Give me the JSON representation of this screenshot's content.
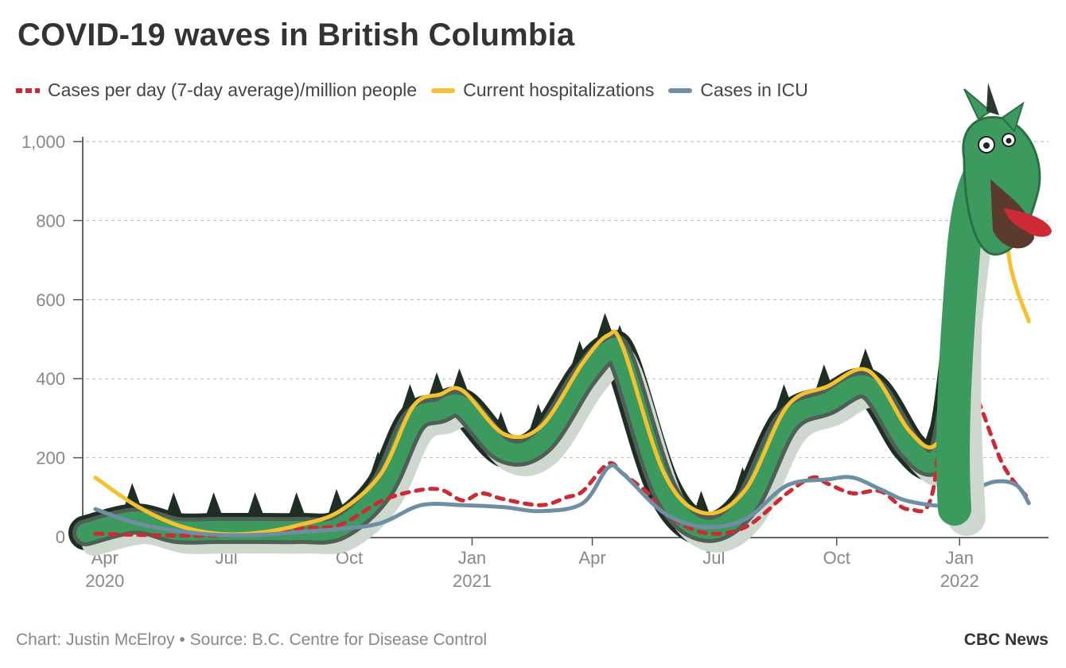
{
  "title": "COVID-19 waves in British Columbia",
  "legend": [
    {
      "label": "Cases per day (7-day average)/million people",
      "color": "#cc2b36",
      "style": "dashed"
    },
    {
      "label": "Current hospitalizations",
      "color": "#f5c12e",
      "style": "solid"
    },
    {
      "label": "Cases in ICU",
      "color": "#6e8fa3",
      "style": "solid"
    }
  ],
  "footer": {
    "credit": "Chart: Justin McElroy • Source: B.C. Centre for Disease Control",
    "brand": "CBC News"
  },
  "chart_data": {
    "type": "line",
    "title": "COVID-19 waves in British Columbia",
    "xlabel": "",
    "ylabel": "",
    "ylim": [
      0,
      1000
    ],
    "yticks": [
      {
        "value": 0,
        "label": "0"
      },
      {
        "value": 200,
        "label": "200"
      },
      {
        "value": 400,
        "label": "400"
      },
      {
        "value": 600,
        "label": "600"
      },
      {
        "value": 800,
        "label": "800"
      },
      {
        "value": 1000,
        "label": "1,000"
      }
    ],
    "xrange": [
      "2020-03-25",
      "2022-03-05"
    ],
    "xticks": [
      {
        "date": "2020-04-01",
        "label": "Apr",
        "year": "2020"
      },
      {
        "date": "2020-07-01",
        "label": "Jul",
        "year": ""
      },
      {
        "date": "2020-10-01",
        "label": "Oct",
        "year": ""
      },
      {
        "date": "2021-01-01",
        "label": "Jan",
        "year": "2021"
      },
      {
        "date": "2021-04-01",
        "label": "Apr",
        "year": ""
      },
      {
        "date": "2021-07-01",
        "label": "Jul",
        "year": ""
      },
      {
        "date": "2021-10-01",
        "label": "Oct",
        "year": ""
      },
      {
        "date": "2022-01-01",
        "label": "Jan",
        "year": "2022"
      }
    ],
    "grid": true,
    "legend_position": "top-left",
    "series": [
      {
        "name": "Cases per day (7-day average)/million people",
        "color": "#cc2b36",
        "style": "dashed",
        "points": [
          [
            "2020-04-01",
            8
          ],
          [
            "2020-05-01",
            5
          ],
          [
            "2020-06-01",
            3
          ],
          [
            "2020-07-01",
            3
          ],
          [
            "2020-08-01",
            8
          ],
          [
            "2020-09-01",
            22
          ],
          [
            "2020-10-01",
            30
          ],
          [
            "2020-11-01",
            90
          ],
          [
            "2020-11-25",
            115
          ],
          [
            "2020-12-15",
            120
          ],
          [
            "2021-01-01",
            92
          ],
          [
            "2021-01-15",
            110
          ],
          [
            "2021-02-01",
            95
          ],
          [
            "2021-03-01",
            80
          ],
          [
            "2021-03-20",
            100
          ],
          [
            "2021-04-01",
            115
          ],
          [
            "2021-04-20",
            185
          ],
          [
            "2021-05-01",
            160
          ],
          [
            "2021-05-20",
            110
          ],
          [
            "2021-06-01",
            60
          ],
          [
            "2021-07-01",
            10
          ],
          [
            "2021-08-01",
            25
          ],
          [
            "2021-09-01",
            110
          ],
          [
            "2021-09-20",
            150
          ],
          [
            "2021-10-01",
            135
          ],
          [
            "2021-10-20",
            110
          ],
          [
            "2021-11-10",
            115
          ],
          [
            "2021-12-01",
            70
          ],
          [
            "2021-12-20",
            130
          ],
          [
            "2022-01-01",
            645
          ],
          [
            "2022-01-10",
            450
          ],
          [
            "2022-01-25",
            320
          ],
          [
            "2022-02-10",
            180
          ],
          [
            "2022-03-01",
            95
          ]
        ]
      },
      {
        "name": "Current hospitalizations",
        "color": "#f5c12e",
        "style": "solid",
        "points": [
          [
            "2020-04-01",
            150
          ],
          [
            "2020-05-01",
            80
          ],
          [
            "2020-06-01",
            30
          ],
          [
            "2020-07-01",
            8
          ],
          [
            "2020-08-01",
            10
          ],
          [
            "2020-09-01",
            30
          ],
          [
            "2020-10-01",
            65
          ],
          [
            "2020-11-01",
            160
          ],
          [
            "2020-11-25",
            330
          ],
          [
            "2020-12-15",
            360
          ],
          [
            "2021-01-01",
            370
          ],
          [
            "2021-02-01",
            260
          ],
          [
            "2021-03-01",
            280
          ],
          [
            "2021-04-01",
            440
          ],
          [
            "2021-04-20",
            510
          ],
          [
            "2021-05-01",
            480
          ],
          [
            "2021-06-01",
            160
          ],
          [
            "2021-07-01",
            60
          ],
          [
            "2021-08-01",
            120
          ],
          [
            "2021-09-01",
            330
          ],
          [
            "2021-10-01",
            380
          ],
          [
            "2021-11-01",
            420
          ],
          [
            "2021-12-01",
            270
          ],
          [
            "2021-12-20",
            230
          ],
          [
            "2022-01-01",
            350
          ],
          [
            "2022-01-20",
            870
          ],
          [
            "2022-02-05",
            960
          ],
          [
            "2022-02-15",
            690
          ],
          [
            "2022-03-01",
            545
          ]
        ]
      },
      {
        "name": "Cases in ICU",
        "color": "#6e8fa3",
        "style": "solid",
        "points": [
          [
            "2020-04-01",
            70
          ],
          [
            "2020-05-01",
            35
          ],
          [
            "2020-06-01",
            15
          ],
          [
            "2020-07-01",
            5
          ],
          [
            "2020-08-01",
            5
          ],
          [
            "2020-09-01",
            12
          ],
          [
            "2020-10-01",
            20
          ],
          [
            "2020-11-01",
            35
          ],
          [
            "2020-12-01",
            80
          ],
          [
            "2021-01-01",
            80
          ],
          [
            "2021-02-01",
            75
          ],
          [
            "2021-03-01",
            65
          ],
          [
            "2021-04-01",
            85
          ],
          [
            "2021-04-20",
            175
          ],
          [
            "2021-05-01",
            160
          ],
          [
            "2021-06-01",
            60
          ],
          [
            "2021-07-01",
            25
          ],
          [
            "2021-08-01",
            45
          ],
          [
            "2021-09-01",
            130
          ],
          [
            "2021-10-01",
            145
          ],
          [
            "2021-10-20",
            150
          ],
          [
            "2021-11-10",
            120
          ],
          [
            "2021-12-01",
            90
          ],
          [
            "2022-01-01",
            80
          ],
          [
            "2022-01-20",
            120
          ],
          [
            "2022-02-05",
            140
          ],
          [
            "2022-02-20",
            130
          ],
          [
            "2022-03-01",
            85
          ]
        ]
      }
    ]
  }
}
